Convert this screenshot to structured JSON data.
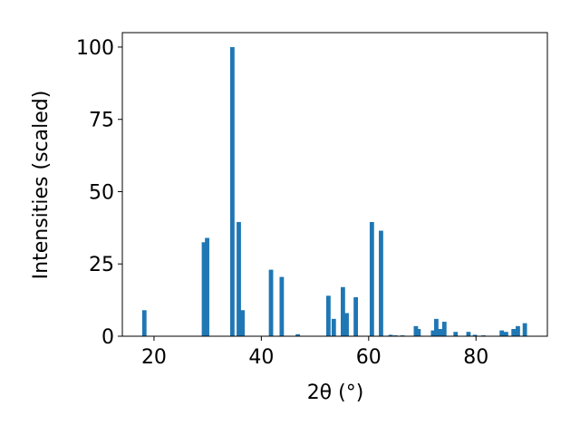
{
  "chart_data": {
    "type": "bar",
    "x_label": "2θ (°)",
    "y_label": "Intensities (scaled)",
    "x": [
      18.2,
      29.3,
      29.9,
      34.6,
      35.8,
      36.5,
      41.8,
      43.8,
      46.8,
      52.5,
      53.5,
      55.2,
      55.9,
      57.6,
      60.6,
      62.3,
      64.1,
      65.0,
      66.3,
      68.8,
      69.3,
      72.0,
      72.6,
      73.3,
      74.1,
      76.2,
      78.6,
      79.8,
      81.4,
      84.8,
      85.6,
      87.0,
      87.8,
      89.1
    ],
    "values": [
      9,
      32.5,
      34,
      100,
      39.5,
      9,
      23,
      20.5,
      0.7,
      14,
      6,
      17,
      8,
      13.5,
      39.5,
      36.5,
      0.5,
      0.3,
      0.3,
      3.5,
      2.5,
      2,
      6,
      2.5,
      5,
      1.5,
      1.5,
      0.5,
      0.3,
      2,
      1.5,
      2.5,
      3.5,
      4.5
    ],
    "color": "#1f77b4",
    "xlim": [
      14.1,
      93.3
    ],
    "ylim": [
      0,
      105
    ],
    "xticks": [
      20,
      40,
      60,
      80
    ],
    "yticks": [
      0,
      25,
      50,
      75,
      100
    ],
    "grid": false
  }
}
